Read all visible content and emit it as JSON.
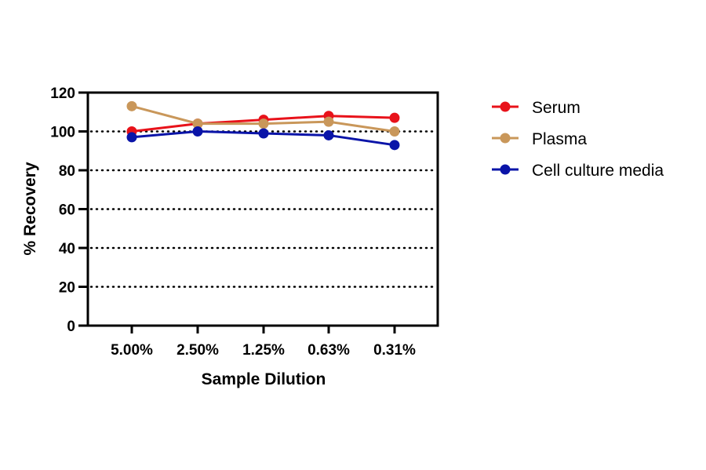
{
  "chart_data": {
    "type": "line",
    "xlabel": "Sample Dilution",
    "ylabel": "% Recovery",
    "categories": [
      "5.00%",
      "2.50%",
      "1.25%",
      "0.63%",
      "0.31%"
    ],
    "ylim": [
      0,
      120
    ],
    "yticks": [
      0,
      20,
      40,
      60,
      80,
      100,
      120
    ],
    "grid": "dotted horizontal at 20-100",
    "legend_position": "right",
    "series": [
      {
        "name": "Serum",
        "color": "#e8121a",
        "values": [
          100,
          104,
          106,
          108,
          107
        ]
      },
      {
        "name": "Plasma",
        "color": "#c9975a",
        "values": [
          113,
          104,
          104,
          105,
          100
        ]
      },
      {
        "name": "Cell culture media",
        "color": "#0a14a8",
        "values": [
          97,
          100,
          99,
          98,
          93
        ]
      }
    ]
  }
}
